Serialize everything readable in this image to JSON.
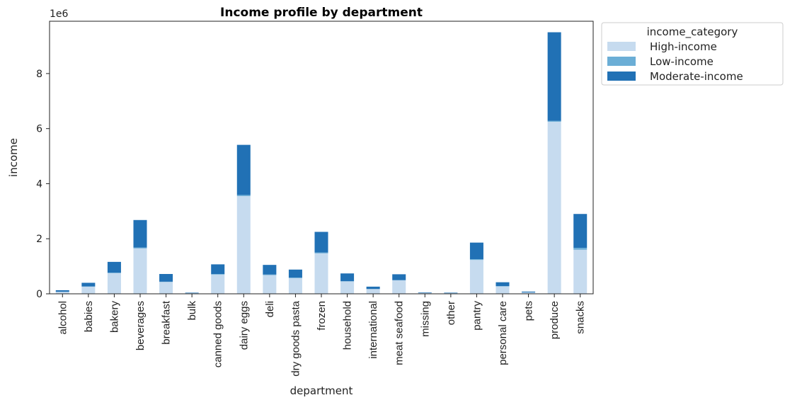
{
  "chart_data": {
    "type": "bar",
    "stacked": true,
    "title": "Income profile by department",
    "xlabel": "department",
    "ylabel": "income",
    "y_offset_label": "1e6",
    "y_scale": 1000000,
    "ylim": [
      0,
      9.9
    ],
    "yticks": [
      0,
      2,
      4,
      6,
      8
    ],
    "grid": false,
    "legend": {
      "title": "income_category",
      "placement": "outside-top-right"
    },
    "categories": [
      "alcohol",
      "babies",
      "bakery",
      "beverages",
      "breakfast",
      "bulk",
      "canned goods",
      "dairy eggs",
      "deli",
      "dry goods pasta",
      "frozen",
      "household",
      "international",
      "meat seafood",
      "missing",
      "other",
      "pantry",
      "personal care",
      "pets",
      "produce",
      "snacks"
    ],
    "series": [
      {
        "name": "High-income",
        "color": "#c6dbef",
        "values": [
          0.07,
          0.26,
          0.75,
          1.65,
          0.43,
          0.02,
          0.7,
          3.55,
          0.68,
          0.57,
          1.47,
          0.45,
          0.17,
          0.49,
          0.03,
          0.02,
          1.23,
          0.27,
          0.05,
          6.25,
          1.6
        ]
      },
      {
        "name": "Low-income",
        "color": "#6baed6",
        "values": [
          0.005,
          0.01,
          0.02,
          0.03,
          0.01,
          0.002,
          0.02,
          0.04,
          0.02,
          0.02,
          0.03,
          0.01,
          0.005,
          0.01,
          0.002,
          0.002,
          0.03,
          0.01,
          0.002,
          0.03,
          0.07
        ]
      },
      {
        "name": "Moderate-income",
        "color": "#2171b5",
        "values": [
          0.055,
          0.13,
          0.39,
          1.0,
          0.28,
          0.018,
          0.35,
          1.82,
          0.35,
          0.29,
          0.75,
          0.28,
          0.085,
          0.21,
          0.018,
          0.018,
          0.6,
          0.14,
          0.028,
          3.22,
          1.23
        ]
      }
    ]
  }
}
